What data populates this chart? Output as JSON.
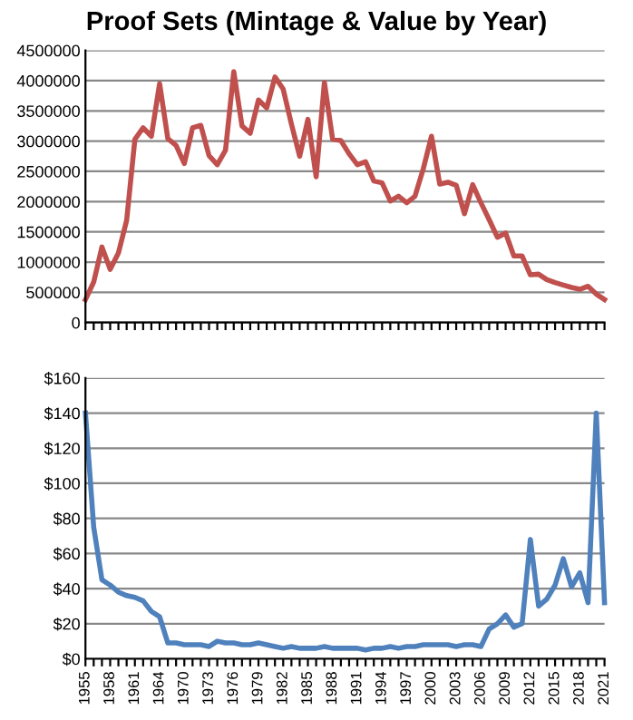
{
  "chart_data": [
    {
      "type": "line",
      "title": "Proof Sets (Mintage & Value by Year)",
      "categories": [
        "1955",
        null,
        null,
        "1958",
        null,
        null,
        "1961",
        null,
        null,
        "1964",
        null,
        null,
        "1970",
        null,
        null,
        "1973",
        null,
        null,
        "1976",
        null,
        null,
        "1979",
        null,
        null,
        "1982",
        null,
        null,
        "1985",
        null,
        null,
        "1988",
        null,
        null,
        "1991",
        null,
        null,
        "1994",
        null,
        null,
        "1997",
        null,
        null,
        "2000",
        null,
        null,
        "2003",
        null,
        null,
        "2006",
        null,
        null,
        "2009",
        null,
        null,
        "2012",
        null,
        null,
        "2015",
        null,
        null,
        "2018",
        null,
        null,
        "2021"
      ],
      "series": [
        {
          "color": "#c0504d",
          "values": [
            380000,
            670000,
            1250000,
            880000,
            1150000,
            1690000,
            3030000,
            3220000,
            3080000,
            3950000,
            3040000,
            2930000,
            2630000,
            3220000,
            3260000,
            2760000,
            2610000,
            2850000,
            4150000,
            3250000,
            3130000,
            3680000,
            3550000,
            4060000,
            3860000,
            3280000,
            2750000,
            3360000,
            2410000,
            3970000,
            3030000,
            3010000,
            2790000,
            2610000,
            2660000,
            2340000,
            2310000,
            2010000,
            2090000,
            1980000,
            2090000,
            2540000,
            3080000,
            2290000,
            2320000,
            2270000,
            1800000,
            2280000,
            1980000,
            1700000,
            1410000,
            1480000,
            1100000,
            1100000,
            790000,
            800000,
            710000,
            660000,
            620000,
            580000,
            550000,
            600000,
            470000,
            380000
          ]
        }
      ],
      "ylim": [
        0,
        4500000
      ],
      "yticks": [
        0,
        500000,
        1000000,
        1500000,
        2000000,
        2500000,
        3000000,
        3500000,
        4000000,
        4500000
      ],
      "grid": "y",
      "tick_labels": "y"
    },
    {
      "type": "line",
      "categories": [
        "1955",
        null,
        null,
        "1958",
        null,
        null,
        "1961",
        null,
        null,
        "1964",
        null,
        null,
        "1970",
        null,
        null,
        "1973",
        null,
        null,
        "1976",
        null,
        null,
        "1979",
        null,
        null,
        "1982",
        null,
        null,
        "1985",
        null,
        null,
        "1988",
        null,
        null,
        "1991",
        null,
        null,
        "1994",
        null,
        null,
        "1997",
        null,
        null,
        "2000",
        null,
        null,
        "2003",
        null,
        null,
        "2006",
        null,
        null,
        "2009",
        null,
        null,
        "2012",
        null,
        null,
        "2015",
        null,
        null,
        "2018",
        null,
        null,
        "2021"
      ],
      "series": [
        {
          "color": "#4f81bd",
          "values": [
            140,
            75,
            45,
            42,
            38,
            36,
            35,
            33,
            27,
            24,
            9,
            9,
            8,
            8,
            8,
            7,
            10,
            9,
            9,
            8,
            8,
            9,
            8,
            7,
            6,
            7,
            6,
            6,
            6,
            7,
            6,
            6,
            6,
            6,
            5,
            6,
            6,
            7,
            6,
            7,
            7,
            8,
            8,
            8,
            8,
            7,
            8,
            8,
            7,
            17,
            20,
            25,
            18,
            20,
            68,
            30,
            34,
            42,
            57,
            41,
            49,
            32,
            140,
            32
          ]
        }
      ],
      "ylim": [
        0,
        160
      ],
      "yticks": [
        {
          "value": 0,
          "label": "$0"
        },
        {
          "value": 20,
          "label": "$20"
        },
        {
          "value": 40,
          "label": "$40"
        },
        {
          "value": 60,
          "label": "$60"
        },
        {
          "value": 80,
          "label": "$80"
        },
        {
          "value": 100,
          "label": "$100"
        },
        {
          "value": 120,
          "label": "$120"
        },
        {
          "value": 140,
          "label": "$140"
        },
        {
          "value": 160,
          "label": "$160"
        }
      ],
      "grid": "y"
    }
  ]
}
